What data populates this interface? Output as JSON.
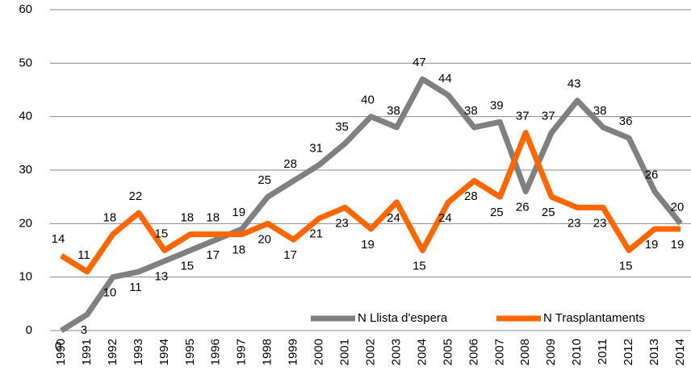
{
  "chart_data": {
    "type": "line",
    "categories": [
      "1990",
      "1991",
      "1992",
      "1993",
      "1994",
      "1995",
      "1996",
      "1997",
      "1998",
      "1999",
      "2000",
      "2001",
      "2002",
      "2003",
      "2004",
      "2005",
      "2006",
      "2007",
      "2008",
      "2009",
      "2010",
      "2011",
      "2012",
      "2013",
      "2014"
    ],
    "series": [
      {
        "name": "N Llista d'espera",
        "color": "#808080",
        "values": [
          0,
          3,
          10,
          11,
          13,
          15,
          17,
          19,
          25,
          28,
          31,
          35,
          40,
          38,
          47,
          44,
          38,
          39,
          26,
          37,
          43,
          38,
          36,
          26,
          20
        ]
      },
      {
        "name": "N Trasplantaments",
        "color": "#ff6600",
        "values": [
          14,
          11,
          18,
          22,
          15,
          18,
          18,
          18,
          20,
          17,
          21,
          23,
          19,
          24,
          15,
          24,
          28,
          25,
          37,
          25,
          23,
          23,
          15,
          19,
          19
        ]
      }
    ],
    "ylim": [
      0,
      60
    ],
    "yticks": [
      0,
      10,
      20,
      30,
      40,
      50,
      60
    ],
    "grid": true,
    "legend": "bottom-right"
  }
}
